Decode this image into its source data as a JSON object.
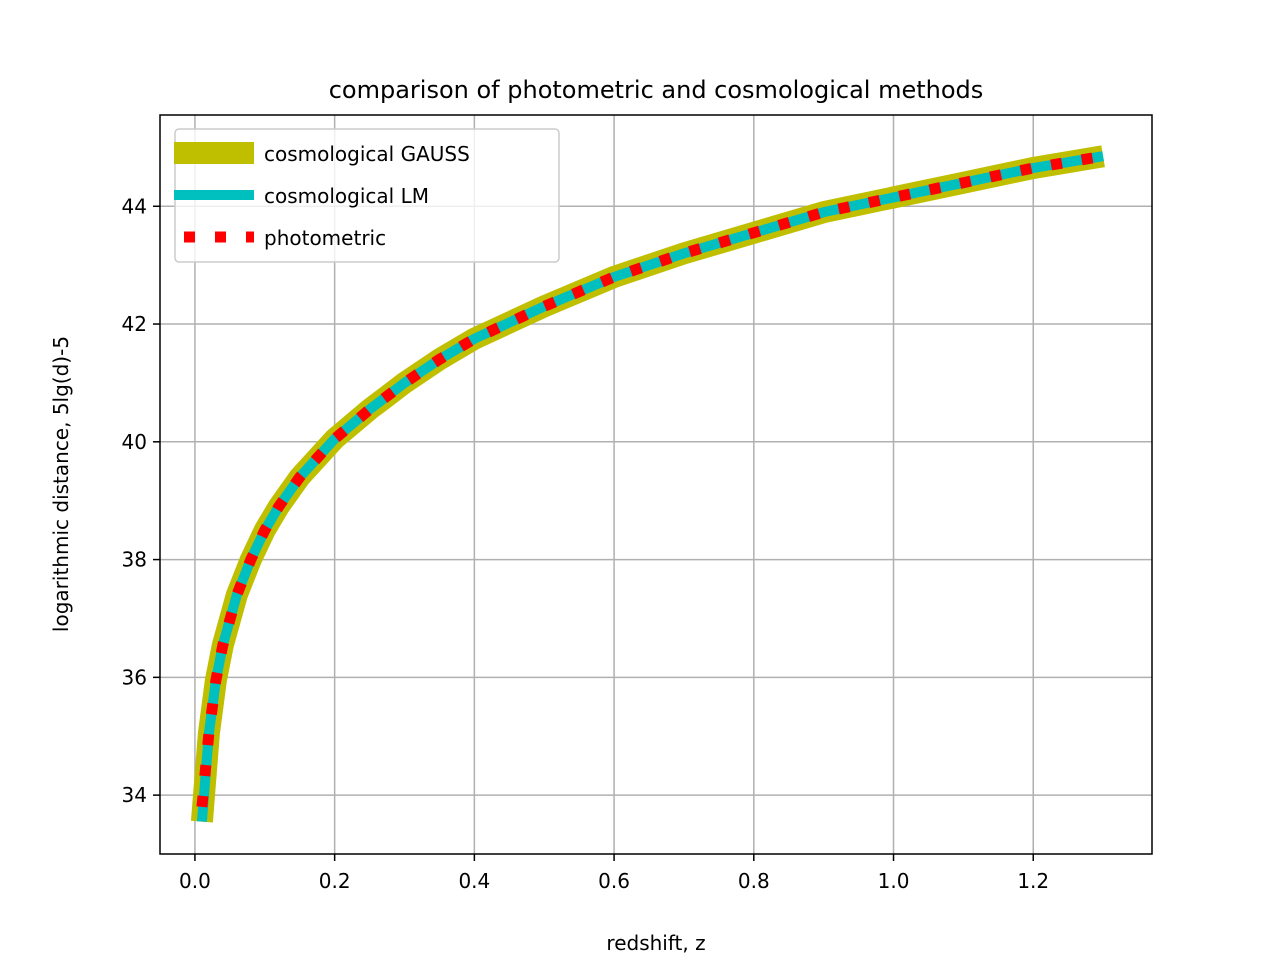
{
  "chart_data": {
    "type": "line",
    "title": "comparison of photometric and cosmological methods",
    "xlabel": "redshift, z",
    "ylabel": "logarithmic distance, 5lg(d)-5",
    "xlim": [
      -0.05,
      1.37
    ],
    "ylim": [
      33.0,
      45.55
    ],
    "xticks": [
      0.0,
      0.2,
      0.4,
      0.6,
      0.8,
      1.0,
      1.2
    ],
    "xtick_labels": [
      "0.0",
      "0.2",
      "0.4",
      "0.6",
      "0.8",
      "1.0",
      "1.2"
    ],
    "yticks": [
      34,
      36,
      38,
      40,
      42,
      44
    ],
    "ytick_labels": [
      "34",
      "36",
      "38",
      "40",
      "42",
      "44"
    ],
    "grid": true,
    "legend_position": "top-left",
    "series": [
      {
        "name": "cosmological GAUSS",
        "color": "#bfbf00",
        "style": "solid-thick",
        "x": [
          0.01,
          0.02,
          0.03,
          0.04,
          0.06,
          0.08,
          0.1,
          0.12,
          0.15,
          0.2,
          0.25,
          0.3,
          0.35,
          0.4,
          0.5,
          0.6,
          0.7,
          0.8,
          0.9,
          1.0,
          1.1,
          1.2,
          1.3
        ],
        "y": [
          33.55,
          35.05,
          35.95,
          36.55,
          37.4,
          38.0,
          38.5,
          38.9,
          39.4,
          40.05,
          40.55,
          41.0,
          41.4,
          41.75,
          42.3,
          42.8,
          43.2,
          43.55,
          43.9,
          44.15,
          44.4,
          44.65,
          44.85
        ]
      },
      {
        "name": "cosmological LM",
        "color": "#00bfbf",
        "style": "solid",
        "x": [
          0.01,
          0.02,
          0.03,
          0.04,
          0.06,
          0.08,
          0.1,
          0.12,
          0.15,
          0.2,
          0.25,
          0.3,
          0.35,
          0.4,
          0.5,
          0.6,
          0.7,
          0.8,
          0.9,
          1.0,
          1.1,
          1.2,
          1.3
        ],
        "y": [
          33.55,
          35.05,
          35.95,
          36.55,
          37.4,
          38.0,
          38.5,
          38.9,
          39.4,
          40.05,
          40.55,
          41.0,
          41.4,
          41.75,
          42.3,
          42.8,
          43.2,
          43.55,
          43.9,
          44.15,
          44.4,
          44.65,
          44.85
        ]
      },
      {
        "name": "photometric",
        "color": "#ff0000",
        "style": "dotted",
        "x": [
          0.01,
          0.02,
          0.03,
          0.04,
          0.06,
          0.08,
          0.1,
          0.12,
          0.15,
          0.2,
          0.25,
          0.3,
          0.35,
          0.4,
          0.5,
          0.6,
          0.7,
          0.8,
          0.9,
          1.0,
          1.1,
          1.2,
          1.3
        ],
        "y": [
          33.8,
          35.05,
          35.95,
          36.55,
          37.4,
          38.0,
          38.5,
          38.9,
          39.4,
          40.05,
          40.55,
          41.0,
          41.4,
          41.75,
          42.3,
          42.8,
          43.2,
          43.55,
          43.9,
          44.15,
          44.4,
          44.65,
          44.85
        ]
      }
    ]
  }
}
